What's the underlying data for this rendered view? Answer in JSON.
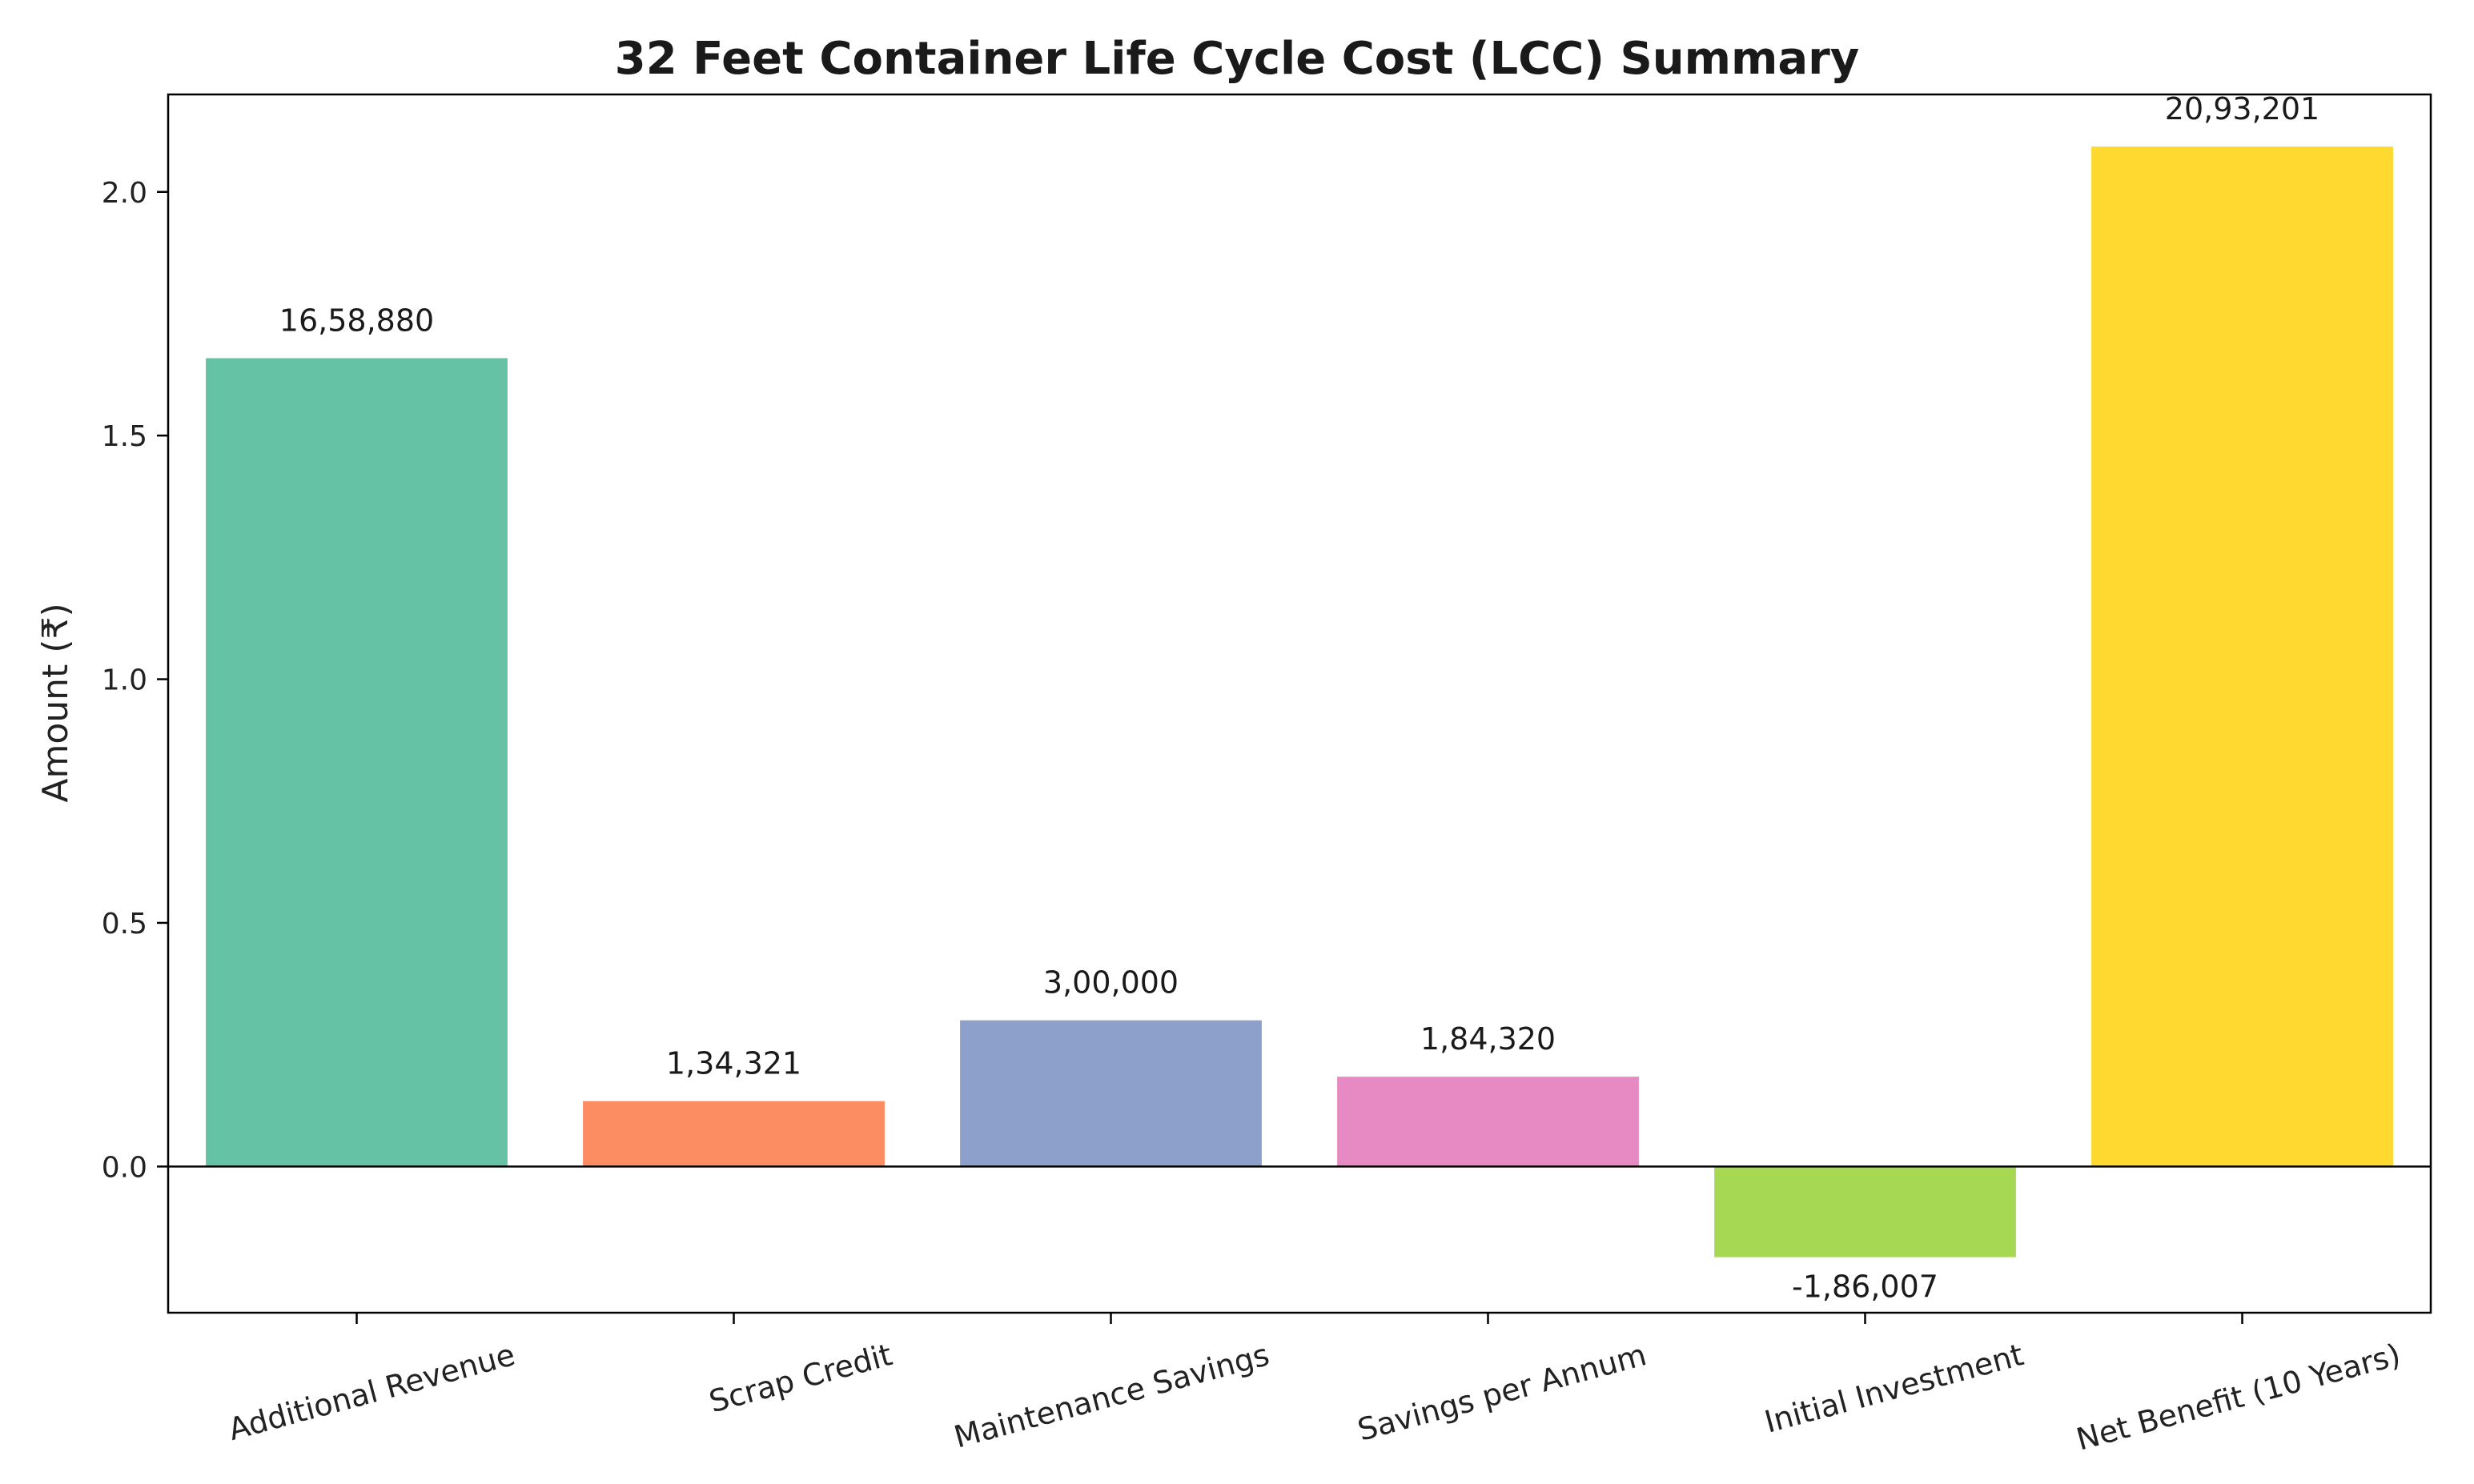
{
  "chart_data": {
    "type": "bar",
    "title": "32 Feet Container Life Cycle Cost (LCC) Summary",
    "xlabel": "",
    "ylabel": "Amount (₹)",
    "ylim": [
      -0.3,
      2.2
    ],
    "yticks": [
      0.0,
      0.5,
      1.0,
      1.5,
      2.0
    ],
    "ytick_labels": [
      "0.0",
      "0.5",
      "1.0",
      "1.5",
      "2.0"
    ],
    "y_scale_note": "values shown in millions (1e6)",
    "categories": [
      "Additional Revenue",
      "Scrap Credit",
      "Maintenance Savings",
      "Savings per Annum",
      "Initial Investment",
      "Net Benefit (10 Years)"
    ],
    "values": [
      1658880,
      134321,
      300000,
      184320,
      -186007,
      2093201
    ],
    "data_labels": [
      "16,58,880",
      "1,34,321",
      "3,00,000",
      "1,84,320",
      "-1,86,007",
      "20,93,201"
    ],
    "colors": [
      "#66c2a5",
      "#fc8d62",
      "#8da0cb",
      "#e78ac3",
      "#a6d854",
      "#ffd92f"
    ],
    "grid": false,
    "legend": "none"
  }
}
